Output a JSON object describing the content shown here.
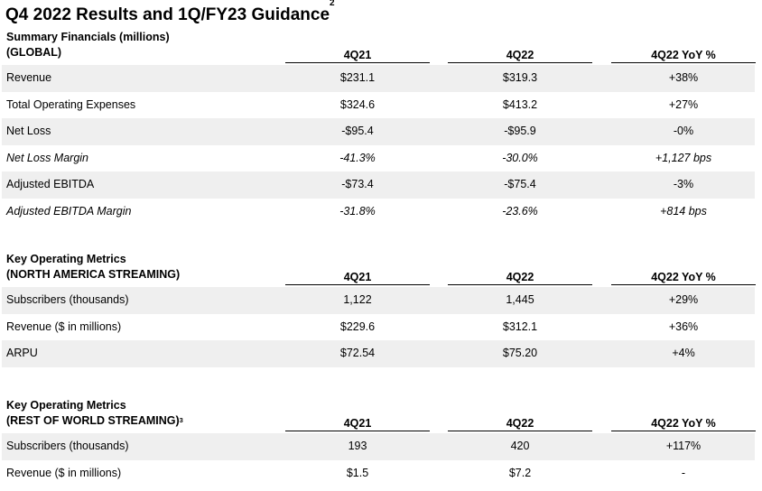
{
  "title": "Q4 2022 Results and 1Q/FY23 Guidance",
  "title_sup": "2",
  "columns": [
    "4Q21",
    "4Q22",
    "4Q22 YoY %"
  ],
  "global": {
    "label_line1": "Summary Financials (millions)",
    "label_line2": "(GLOBAL)",
    "rows": [
      {
        "label": "Revenue",
        "v1": "$231.1",
        "v2": "$319.3",
        "v3": "+38%"
      },
      {
        "label": "Total Operating Expenses",
        "v1": "$324.6",
        "v2": "$413.2",
        "v3": "+27%"
      },
      {
        "label": "Net Loss",
        "v1": "-$95.4",
        "v2": "-$95.9",
        "v3": "-0%"
      },
      {
        "label": "Net Loss Margin",
        "v1": "-41.3%",
        "v2": "-30.0%",
        "v3": "+1,127 bps"
      },
      {
        "label": "Adjusted EBITDA",
        "v1": "-$73.4",
        "v2": "-$75.4",
        "v3": "-3%"
      },
      {
        "label": "Adjusted EBITDA Margin",
        "v1": "-31.8%",
        "v2": "-23.6%",
        "v3": "+814 bps"
      }
    ]
  },
  "na": {
    "label_line1": "Key Operating Metrics",
    "label_line2": "(NORTH AMERICA STREAMING)",
    "rows": [
      {
        "label": "Subscribers (thousands)",
        "v1": "1,122",
        "v2": "1,445",
        "v3": "+29%"
      },
      {
        "label": "Revenue ($ in millions)",
        "v1": "$229.6",
        "v2": "$312.1",
        "v3": "+36%"
      },
      {
        "label": "ARPU",
        "v1": "$72.54",
        "v2": "$75.20",
        "v3": "+4%"
      }
    ]
  },
  "row": {
    "label_line1": "Key Operating Metrics",
    "label_line2": "(REST OF WORLD STREAMING)",
    "label_sup": "3",
    "rows": [
      {
        "label": "Subscribers (thousands)",
        "v1": "193",
        "v2": "420",
        "v3": "+117%"
      },
      {
        "label": "Revenue ($ in millions)",
        "v1": "$1.5",
        "v2": "$7.2",
        "v3": "-"
      }
    ]
  }
}
